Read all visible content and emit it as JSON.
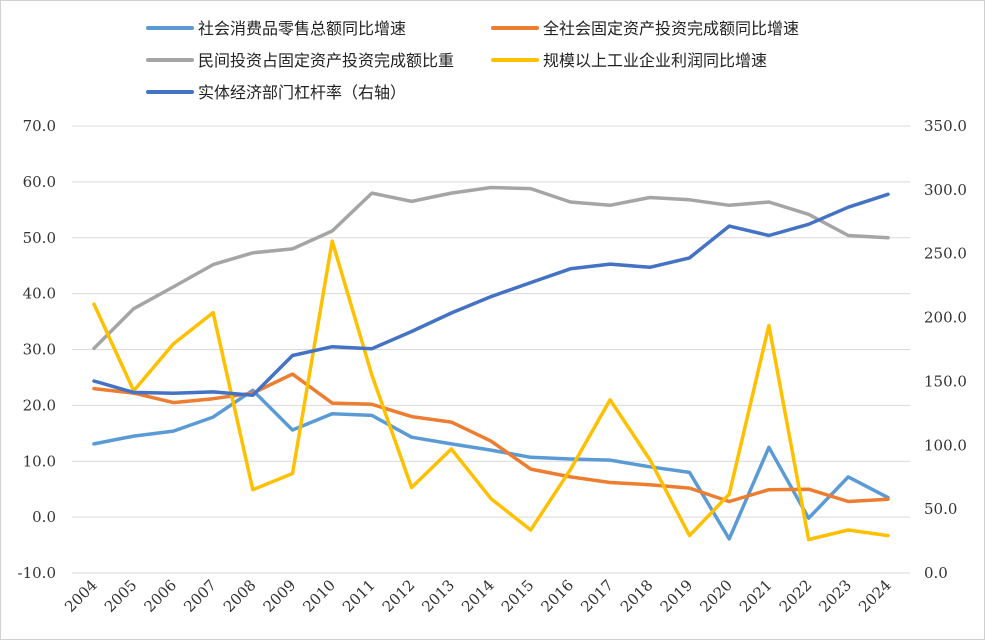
{
  "chart_data": {
    "type": "line",
    "title": "",
    "x": [
      "2004",
      "2005",
      "2006",
      "2007",
      "2008",
      "2009",
      "2010",
      "2011",
      "2012",
      "2013",
      "2014",
      "2015",
      "2016",
      "2017",
      "2018",
      "2019",
      "2020",
      "2021",
      "2022",
      "2023",
      "2024"
    ],
    "left_axis": {
      "ylim": [
        -10,
        70
      ],
      "ticks": [
        "-10.0",
        "0.0",
        "10.0",
        "20.0",
        "30.0",
        "40.0",
        "50.0",
        "60.0",
        "70.0"
      ]
    },
    "right_axis": {
      "ylim": [
        0,
        350
      ],
      "ticks": [
        "0.0",
        "50.0",
        "100.0",
        "150.0",
        "200.0",
        "250.0",
        "300.0",
        "350.0"
      ]
    },
    "grid": true,
    "legend_position": "top",
    "series": [
      {
        "name": "社会消费品零售总额同比增速",
        "axis": "left",
        "color": "#5B9BD5",
        "values": [
          13.1,
          14.5,
          15.4,
          17.9,
          22.7,
          15.6,
          18.5,
          18.2,
          14.3,
          13.1,
          12.0,
          10.7,
          10.4,
          10.2,
          9.0,
          8.0,
          -3.9,
          12.5,
          -0.2,
          7.2,
          3.5
        ]
      },
      {
        "name": "全社会固定资产投资完成额同比增速",
        "axis": "left",
        "color": "#ED7D31",
        "values": [
          23.0,
          22.2,
          20.5,
          21.2,
          22.2,
          25.6,
          20.4,
          20.2,
          18.0,
          17.0,
          13.6,
          8.6,
          7.2,
          6.2,
          5.8,
          5.2,
          2.8,
          4.9,
          5.0,
          2.8,
          3.2
        ]
      },
      {
        "name": "民间投资占固定资产投资完成额比重",
        "axis": "left",
        "color": "#A5A5A5",
        "values": [
          30.2,
          37.3,
          41.2,
          45.2,
          47.3,
          48.0,
          51.2,
          58.0,
          56.5,
          58.0,
          59.0,
          58.8,
          56.4,
          55.8,
          57.2,
          56.8,
          55.8,
          56.4,
          54.2,
          50.4,
          50.0
        ]
      },
      {
        "name": "规模以上工业企业利润同比增速",
        "axis": "left",
        "color": "#FFC000",
        "values": [
          38.1,
          22.6,
          31.0,
          36.6,
          4.9,
          7.8,
          49.4,
          25.4,
          5.3,
          12.2,
          3.3,
          -2.3,
          8.5,
          21.0,
          10.3,
          -3.3,
          4.1,
          34.3,
          -4.0,
          -2.3,
          -3.3
        ]
      },
      {
        "name": "实体经济部门杠杆率（右轴）",
        "axis": "right",
        "color": "#4472C4",
        "values": [
          150.3,
          141.4,
          140.8,
          141.8,
          139.1,
          170.3,
          177.2,
          175.6,
          189.1,
          203.6,
          216.4,
          227.4,
          238.2,
          241.9,
          239.4,
          246.7,
          271.6,
          264.3,
          273.0,
          286.4,
          296.5
        ]
      }
    ]
  }
}
